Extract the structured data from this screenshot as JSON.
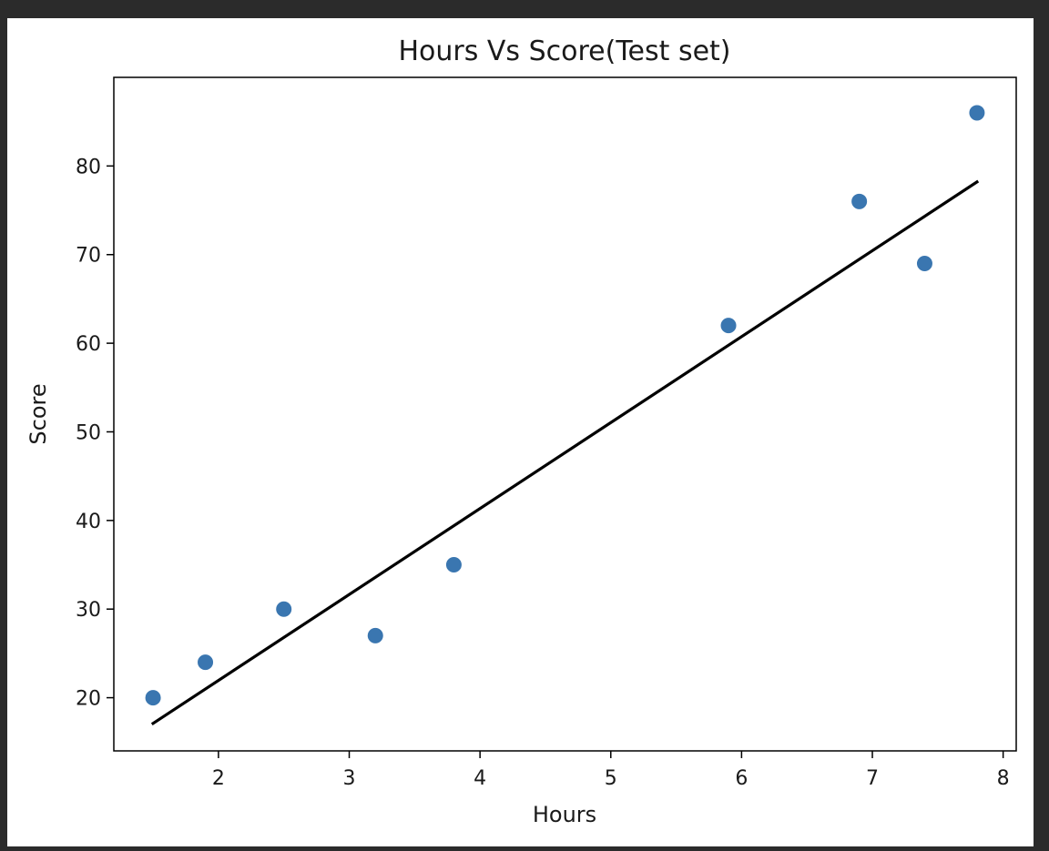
{
  "chart_data": {
    "type": "scatter",
    "title": "Hours Vs Score(Test set)",
    "xlabel": "Hours",
    "ylabel": "Score",
    "xlim": [
      1.2,
      8.1
    ],
    "ylim": [
      14,
      90
    ],
    "xticks": [
      2,
      3,
      4,
      5,
      6,
      7,
      8
    ],
    "yticks": [
      20,
      30,
      40,
      50,
      60,
      70,
      80
    ],
    "grid": false,
    "points": [
      {
        "x": 1.5,
        "y": 20
      },
      {
        "x": 1.9,
        "y": 24
      },
      {
        "x": 2.5,
        "y": 30
      },
      {
        "x": 3.2,
        "y": 27
      },
      {
        "x": 3.8,
        "y": 35
      },
      {
        "x": 5.9,
        "y": 62
      },
      {
        "x": 6.9,
        "y": 76
      },
      {
        "x": 7.4,
        "y": 69
      },
      {
        "x": 7.8,
        "y": 86
      }
    ],
    "regression_line": {
      "x": [
        1.5,
        7.8
      ],
      "y": [
        17.1,
        78.2
      ]
    },
    "colors": {
      "points": "#3a76b0",
      "line": "#000000",
      "background": "#ffffff",
      "outer": "#2b2b2b"
    }
  }
}
